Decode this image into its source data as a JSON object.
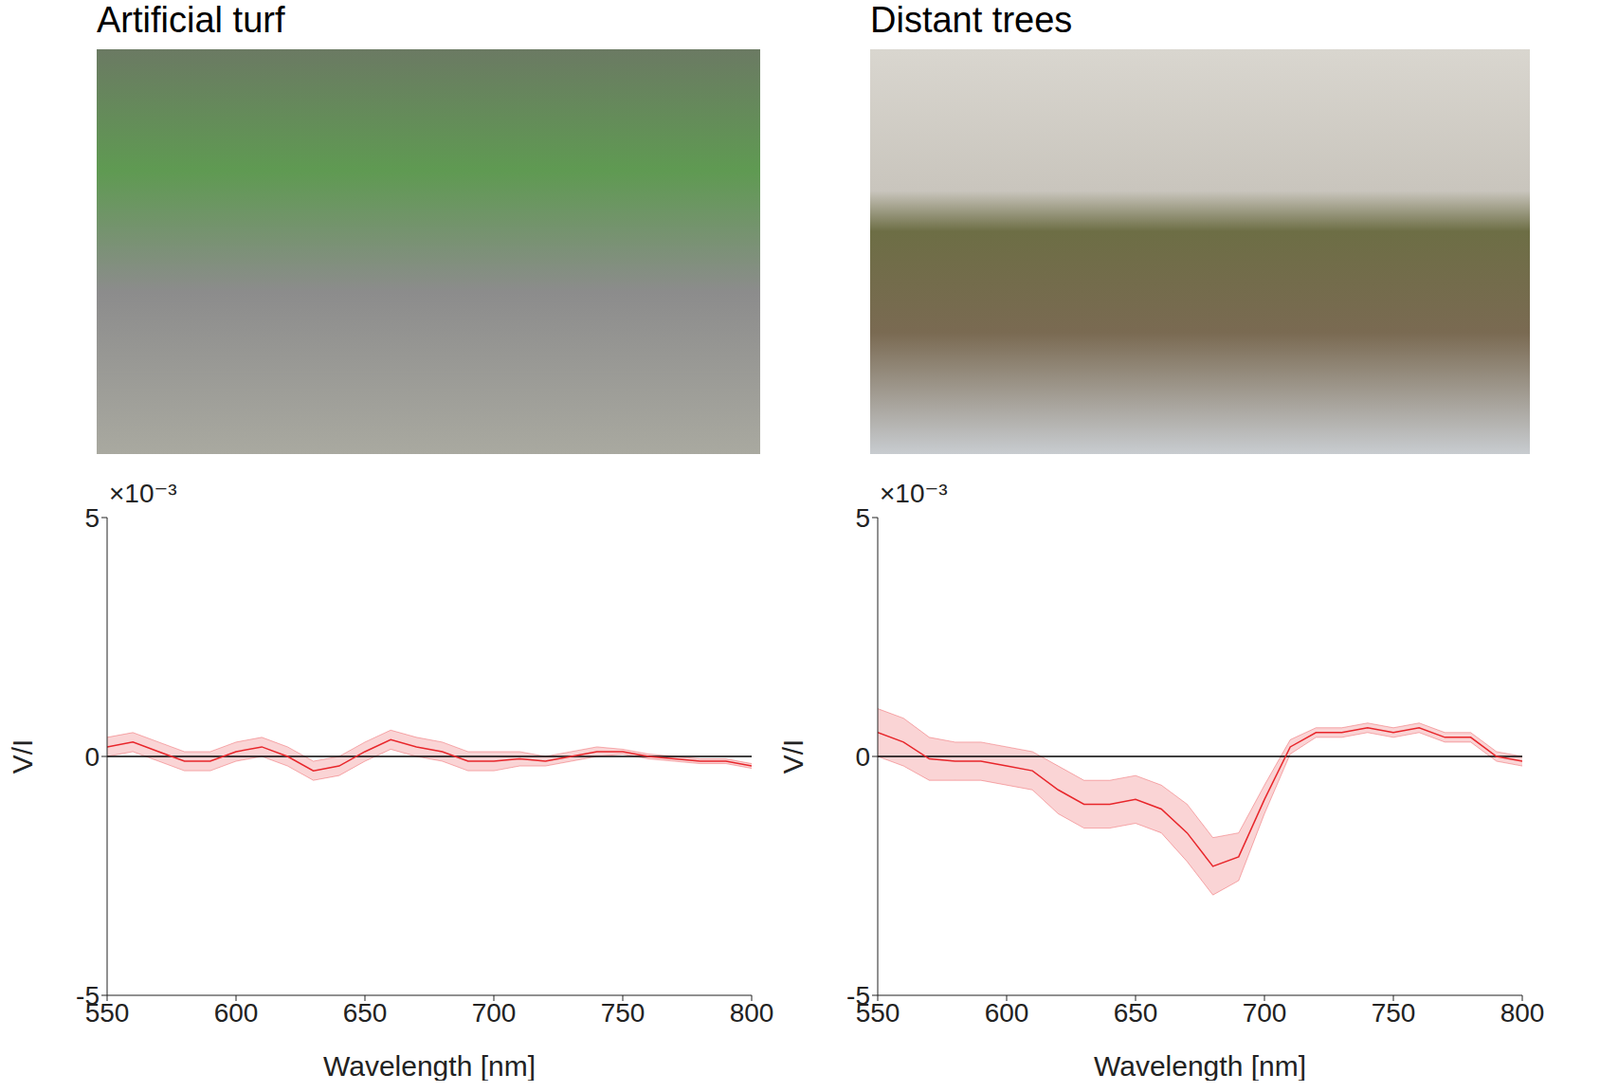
{
  "chart_data": [
    {
      "type": "line",
      "title": "Artificial turf",
      "xlabel": "Wavelength [nm]",
      "ylabel": "V/I",
      "y_multiplier": "×10⁻³",
      "x": [
        550,
        560,
        570,
        580,
        590,
        600,
        610,
        620,
        630,
        640,
        650,
        660,
        670,
        680,
        690,
        700,
        710,
        720,
        730,
        740,
        750,
        760,
        770,
        780,
        790,
        800
      ],
      "values": [
        0.2,
        0.3,
        0.1,
        -0.1,
        -0.1,
        0.1,
        0.2,
        0.0,
        -0.3,
        -0.2,
        0.1,
        0.35,
        0.2,
        0.1,
        -0.1,
        -0.1,
        -0.05,
        -0.1,
        0.0,
        0.1,
        0.1,
        0.0,
        -0.05,
        -0.1,
        -0.1,
        -0.2
      ],
      "lower": [
        0.0,
        0.1,
        -0.1,
        -0.3,
        -0.3,
        -0.1,
        0.0,
        -0.2,
        -0.5,
        -0.4,
        -0.1,
        0.15,
        0.0,
        -0.1,
        -0.3,
        -0.3,
        -0.2,
        -0.2,
        -0.1,
        0.0,
        0.05,
        -0.05,
        -0.1,
        -0.15,
        -0.15,
        -0.25
      ],
      "upper": [
        0.4,
        0.5,
        0.3,
        0.1,
        0.1,
        0.3,
        0.4,
        0.2,
        -0.1,
        0.0,
        0.3,
        0.55,
        0.4,
        0.3,
        0.1,
        0.1,
        0.1,
        0.0,
        0.1,
        0.2,
        0.15,
        0.05,
        0.0,
        -0.05,
        -0.05,
        -0.15
      ],
      "color": "#e8262b",
      "xlim": [
        550,
        800
      ],
      "ylim": [
        -5,
        5
      ],
      "xticks": [
        550,
        600,
        650,
        700,
        750,
        800
      ],
      "yticks": [
        -5,
        0,
        5
      ],
      "hline": 0,
      "grid": false
    },
    {
      "type": "line",
      "title": "Distant trees",
      "xlabel": "Wavelength [nm]",
      "ylabel": "V/I",
      "y_multiplier": "×10⁻³",
      "x": [
        550,
        560,
        570,
        580,
        590,
        600,
        610,
        620,
        630,
        640,
        650,
        660,
        670,
        680,
        690,
        700,
        710,
        720,
        730,
        740,
        750,
        760,
        770,
        780,
        790,
        800
      ],
      "values": [
        0.5,
        0.3,
        -0.05,
        -0.1,
        -0.1,
        -0.2,
        -0.3,
        -0.7,
        -1.0,
        -1.0,
        -0.9,
        -1.1,
        -1.6,
        -2.3,
        -2.1,
        -0.9,
        0.2,
        0.5,
        0.5,
        0.6,
        0.5,
        0.6,
        0.4,
        0.4,
        0.0,
        -0.1
      ],
      "lower": [
        0.0,
        -0.2,
        -0.5,
        -0.5,
        -0.5,
        -0.6,
        -0.7,
        -1.2,
        -1.5,
        -1.5,
        -1.4,
        -1.6,
        -2.2,
        -2.9,
        -2.6,
        -1.2,
        0.05,
        0.4,
        0.4,
        0.5,
        0.4,
        0.5,
        0.3,
        0.3,
        -0.1,
        -0.2
      ],
      "upper": [
        1.0,
        0.8,
        0.4,
        0.3,
        0.3,
        0.2,
        0.1,
        -0.2,
        -0.5,
        -0.5,
        -0.4,
        -0.6,
        -1.0,
        -1.7,
        -1.6,
        -0.6,
        0.35,
        0.6,
        0.6,
        0.7,
        0.6,
        0.7,
        0.5,
        0.5,
        0.1,
        0.0
      ],
      "color": "#e8262b",
      "xlim": [
        550,
        800
      ],
      "ylim": [
        -5,
        5
      ],
      "xticks": [
        550,
        600,
        650,
        700,
        750,
        800
      ],
      "yticks": [
        -5,
        0,
        5
      ],
      "hline": 0,
      "grid": false
    }
  ]
}
